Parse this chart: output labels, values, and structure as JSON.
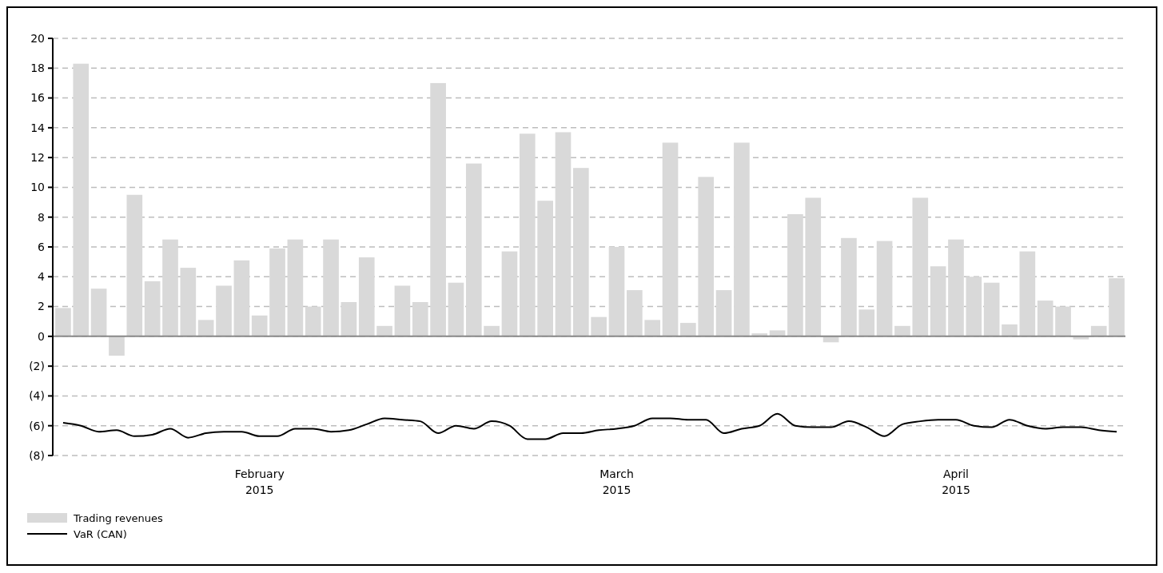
{
  "chart_data": {
    "type": "bar",
    "categories": [
      null,
      null,
      null,
      null,
      null,
      null,
      null,
      null,
      null,
      null,
      null,
      "February\n2015",
      null,
      null,
      null,
      null,
      null,
      null,
      null,
      null,
      null,
      null,
      null,
      null,
      null,
      null,
      null,
      null,
      null,
      null,
      null,
      "March\n2015",
      null,
      null,
      null,
      null,
      null,
      null,
      null,
      null,
      null,
      null,
      null,
      null,
      null,
      null,
      null,
      null,
      null,
      null,
      "April\n2015",
      null,
      null,
      null,
      null,
      null,
      null,
      null,
      null,
      null
    ],
    "series": [
      {
        "name": "Trading revenues",
        "color": "#d9d9d9",
        "values": [
          1.9,
          18.3,
          3.2,
          -1.3,
          9.5,
          3.7,
          6.5,
          4.6,
          1.1,
          3.4,
          5.1,
          1.4,
          5.9,
          6.5,
          2.0,
          6.5,
          2.3,
          5.3,
          0.7,
          3.4,
          2.3,
          17.0,
          3.6,
          11.6,
          0.7,
          5.7,
          13.6,
          9.1,
          13.7,
          11.3,
          1.3,
          6.0,
          3.1,
          1.1,
          13.0,
          0.9,
          10.7,
          3.1,
          13.0,
          0.2,
          0.4,
          8.2,
          9.3,
          -0.4,
          6.6,
          1.8,
          6.4,
          0.7,
          9.3,
          4.7,
          6.5,
          4.0,
          3.6,
          0.8,
          5.7,
          2.4,
          2.0,
          -0.2,
          0.7,
          3.9
        ]
      },
      {
        "name": "VaR (CAN)",
        "type": "line",
        "color": "#000000",
        "values": [
          -5.8,
          -6.0,
          -6.4,
          -6.3,
          -6.7,
          -6.6,
          -6.2,
          -6.8,
          -6.5,
          -6.4,
          -6.4,
          -6.7,
          -6.7,
          -6.2,
          -6.2,
          -6.4,
          -6.3,
          -5.9,
          -5.5,
          -5.6,
          -5.7,
          -6.5,
          -6.0,
          -6.2,
          -5.7,
          -6.0,
          -6.9,
          -6.9,
          -6.5,
          -6.5,
          -6.3,
          -6.2,
          -6.0,
          -5.5,
          -5.5,
          -5.6,
          -5.6,
          -6.5,
          -6.2,
          -6.0,
          -5.2,
          -6.0,
          -6.1,
          -6.1,
          -5.7,
          -6.1,
          -6.7,
          -5.9,
          -5.7,
          -5.6,
          -5.6,
          -6.0,
          -6.1,
          -5.6,
          -6.0,
          -6.2,
          -6.1,
          -6.1,
          -6.3,
          -6.4
        ]
      }
    ],
    "ylim": [
      -8,
      20
    ],
    "yticks": [
      {
        "value": -8,
        "label": "(8)"
      },
      {
        "value": -6,
        "label": "(6)"
      },
      {
        "value": -4,
        "label": "(4)"
      },
      {
        "value": -2,
        "label": "(2)"
      },
      0,
      2,
      4,
      6,
      8,
      10,
      12,
      14,
      16,
      18,
      20
    ],
    "grid": "y",
    "legend": "bottom left",
    "line_style": "solid"
  }
}
